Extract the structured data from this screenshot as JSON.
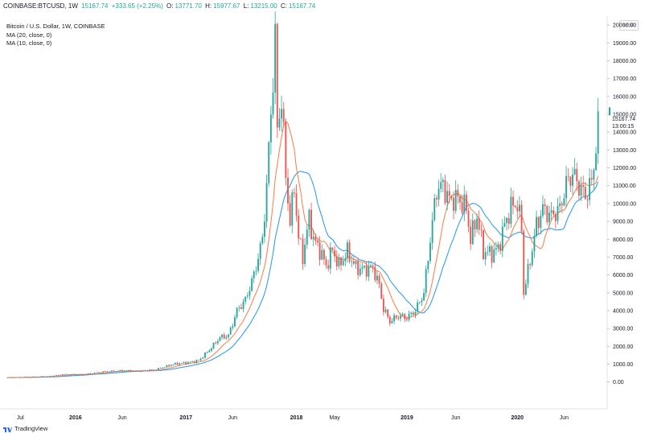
{
  "header": {
    "symbol": "COINBASE:BTCUSD, 1W",
    "last": "15167.74",
    "change": "+333.65 (+2.25%)",
    "o_label": "O:",
    "o_value": "13771.70",
    "h_label": "H:",
    "h_value": "15977.67",
    "l_label": "L:",
    "l_value": "13215.00",
    "c_label": "C:",
    "c_value": "15167.74"
  },
  "legend": {
    "title": "Bitcoin / U.S. Dollar, 1W, COINBASE",
    "ma20": "MA (20, close, 0)",
    "ma10": "MA (10, close, 0)"
  },
  "currency": "USD",
  "price_tag": {
    "price": "15167.74",
    "time": "13:00:15"
  },
  "branding": "TradingView",
  "colors": {
    "up": "#26a69a",
    "down": "#ef5350",
    "ma20": "#2196f3",
    "ma10": "#ff7a45"
  },
  "chart_data": {
    "type": "candlestick",
    "title": "Bitcoin / U.S. Dollar, 1W, COINBASE",
    "ylim": [
      -1500,
      20500
    ],
    "yticks": [
      "20000.00",
      "19000.00",
      "18000.00",
      "17000.00",
      "16000.00",
      "15000.00",
      "14000.00",
      "13000.00",
      "12000.00",
      "11000.00",
      "10000.00",
      "9000.00",
      "8000.00",
      "7000.00",
      "6000.00",
      "5000.00",
      "4000.00",
      "3000.00",
      "2000.00",
      "1000.00",
      "0.00"
    ],
    "x_labels": [
      {
        "label": "Jul",
        "bold": false
      },
      {
        "label": "2016",
        "bold": true
      },
      {
        "label": "Jun",
        "bold": false
      },
      {
        "label": "2017",
        "bold": true
      },
      {
        "label": "Jun",
        "bold": false
      },
      {
        "label": "2018",
        "bold": true
      },
      {
        "label": "May",
        "bold": false
      },
      {
        "label": "2019",
        "bold": true
      },
      {
        "label": "Jun",
        "bold": false
      },
      {
        "label": "2020",
        "bold": true
      },
      {
        "label": "Jun",
        "bold": false
      }
    ],
    "x_label_weeks": [
      0,
      26,
      48,
      78,
      100,
      130,
      148,
      182,
      205,
      234,
      256
    ],
    "close_anchors": [
      [
        0,
        250
      ],
      [
        10,
        280
      ],
      [
        20,
        320
      ],
      [
        26,
        430
      ],
      [
        35,
        420
      ],
      [
        45,
        580
      ],
      [
        55,
        650
      ],
      [
        60,
        600
      ],
      [
        70,
        700
      ],
      [
        78,
        1000
      ],
      [
        85,
        1100
      ],
      [
        90,
        1200
      ],
      [
        95,
        1800
      ],
      [
        100,
        2500
      ],
      [
        104,
        2600
      ],
      [
        108,
        4000
      ],
      [
        112,
        4600
      ],
      [
        116,
        6000
      ],
      [
        120,
        8000
      ],
      [
        122,
        11000
      ],
      [
        124,
        15000
      ],
      [
        126,
        19300
      ],
      [
        127,
        14000
      ],
      [
        129,
        16000
      ],
      [
        131,
        11500
      ],
      [
        133,
        9000
      ],
      [
        135,
        10900
      ],
      [
        137,
        8100
      ],
      [
        139,
        7000
      ],
      [
        142,
        9200
      ],
      [
        144,
        8000
      ],
      [
        147,
        7400
      ],
      [
        150,
        6500
      ],
      [
        153,
        7400
      ],
      [
        156,
        6500
      ],
      [
        160,
        7300
      ],
      [
        164,
        6400
      ],
      [
        168,
        6300
      ],
      [
        172,
        6400
      ],
      [
        175,
        5400
      ],
      [
        177,
        4100
      ],
      [
        180,
        3400
      ],
      [
        184,
        3700
      ],
      [
        188,
        3600
      ],
      [
        192,
        4000
      ],
      [
        196,
        5000
      ],
      [
        199,
        8000
      ],
      [
        202,
        10800
      ],
      [
        205,
        11000
      ],
      [
        208,
        10200
      ],
      [
        212,
        10300
      ],
      [
        216,
        9700
      ],
      [
        218,
        8000
      ],
      [
        221,
        9300
      ],
      [
        224,
        7300
      ],
      [
        228,
        7200
      ],
      [
        231,
        7500
      ],
      [
        234,
        8800
      ],
      [
        237,
        9800
      ],
      [
        240,
        10000
      ],
      [
        242,
        8600
      ],
      [
        243,
        5000
      ],
      [
        246,
        6800
      ],
      [
        249,
        8800
      ],
      [
        252,
        9700
      ],
      [
        256,
        9300
      ],
      [
        260,
        9700
      ],
      [
        263,
        11100
      ],
      [
        266,
        11700
      ],
      [
        269,
        11000
      ],
      [
        272,
        10400
      ],
      [
        275,
        11200
      ],
      [
        277,
        13200
      ],
      [
        278,
        15167.74
      ]
    ],
    "series": [
      {
        "name": "MA (20, close, 0)",
        "period": 20
      },
      {
        "name": "MA (10, close, 0)",
        "period": 10
      }
    ],
    "grid": false,
    "legend_position": "top-left"
  }
}
